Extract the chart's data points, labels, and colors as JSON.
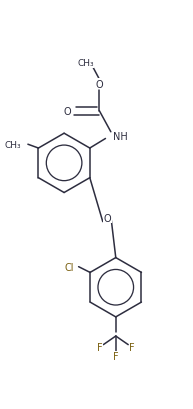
{
  "figsize": [
    1.93,
    4.1
  ],
  "dpi": 100,
  "bg_color": "#ffffff",
  "line_color": "#2d2d3f",
  "line_width": 1.1,
  "font_size": 7.0,
  "cl_color": "#7a6010",
  "f_color": "#7a6010",
  "o_color": "#2d2d3f",
  "n_color": "#2d2d3f",
  "xlim": [
    0.0,
    1.0
  ],
  "ylim": [
    0.0,
    2.13
  ]
}
